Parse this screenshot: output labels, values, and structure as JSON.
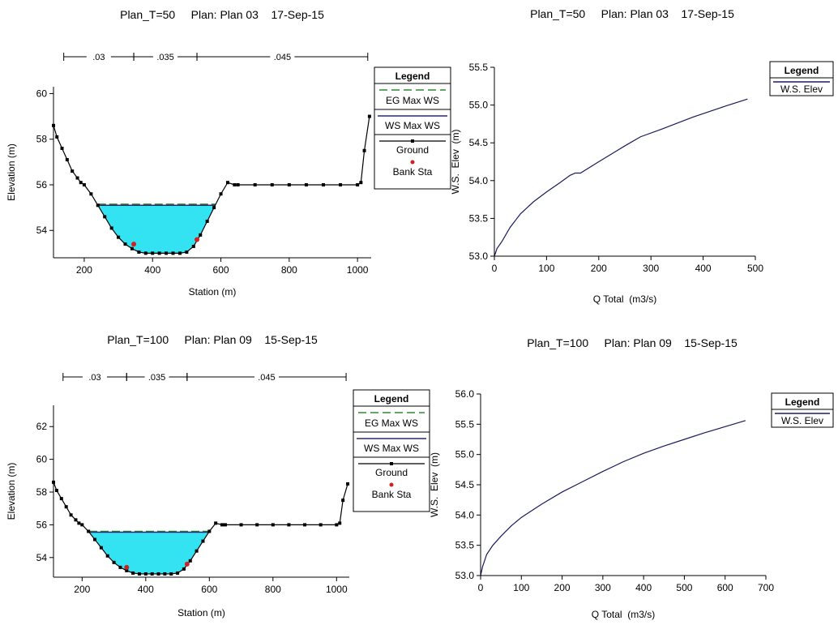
{
  "chart_data": [
    {
      "type": "line",
      "title": "Plan_T=50     Plan: Plan 03    17-Sep-15",
      "xlabel": "Station (m)",
      "ylabel": "Elevation (m)",
      "xlim": [
        110,
        1040
      ],
      "ylim": [
        52.8,
        60.3
      ],
      "x_ticks": [
        200,
        400,
        600,
        800,
        1000
      ],
      "y_ticks": [
        54,
        56,
        58,
        60
      ],
      "manning_n": [
        {
          "label": ".03",
          "from": 140,
          "to": 345
        },
        {
          "label": ".035",
          "from": 345,
          "to": 530
        },
        {
          "label": ".045",
          "from": 530,
          "to": 1030
        }
      ],
      "ground": {
        "x": [
          110,
          120,
          135,
          150,
          165,
          180,
          190,
          200,
          220,
          240,
          260,
          280,
          300,
          320,
          340,
          360,
          380,
          400,
          420,
          440,
          460,
          480,
          500,
          520,
          540,
          560,
          580,
          600,
          620,
          640,
          650,
          700,
          750,
          800,
          850,
          900,
          950,
          1000,
          1010,
          1020,
          1035
        ],
        "y": [
          58.6,
          58.1,
          57.6,
          57.1,
          56.6,
          56.3,
          56.1,
          56.0,
          55.6,
          55.1,
          54.6,
          54.1,
          53.7,
          53.4,
          53.2,
          53.05,
          53.0,
          53.0,
          53.0,
          53.0,
          53.0,
          53.0,
          53.05,
          53.3,
          53.8,
          54.4,
          55.0,
          55.6,
          56.1,
          56.0,
          56.0,
          56.0,
          56.0,
          56.0,
          56.0,
          56.0,
          56.0,
          56.0,
          56.1,
          57.5,
          59.0
        ]
      },
      "bank_stations": [
        {
          "x": 345,
          "y": 53.4
        },
        {
          "x": 530,
          "y": 53.6
        }
      ],
      "ws_max_ws": 55.1,
      "eg_max_ws": 55.15,
      "legend": {
        "title": "Legend",
        "items": [
          "EG Max WS",
          "WS Max WS",
          "Ground",
          "Bank Sta"
        ]
      },
      "colors": {
        "water": "#33e3f2",
        "eg": "#2e8b2e",
        "ws": "#2a2a6e",
        "ground": "#000000",
        "bank": "#cc2222"
      }
    },
    {
      "type": "line",
      "title": "Plan_T=50     Plan: Plan 03    17-Sep-15",
      "xlabel": "Q Total  (m3/s)",
      "ylabel": "W.S.  Elev  (m)",
      "xlim": [
        0,
        500
      ],
      "ylim": [
        53.0,
        55.5
      ],
      "x_ticks": [
        0,
        100,
        200,
        300,
        400,
        500
      ],
      "y_ticks": [
        "53.0",
        "53.5",
        "54.0",
        "54.5",
        "55.0",
        "55.5"
      ],
      "series": [
        {
          "name": "W.S. Elev",
          "x": [
            0,
            5,
            15,
            30,
            50,
            75,
            100,
            125,
            145,
            155,
            165,
            200,
            250,
            280,
            320,
            380,
            440,
            485
          ],
          "y": [
            53.0,
            53.1,
            53.2,
            53.38,
            53.56,
            53.72,
            53.85,
            53.97,
            54.07,
            54.1,
            54.1,
            54.25,
            54.46,
            54.58,
            54.68,
            54.84,
            54.98,
            55.08
          ]
        }
      ],
      "legend": {
        "title": "Legend",
        "items": [
          "W.S. Elev"
        ]
      },
      "colors": {
        "line": "#1a1a5e"
      }
    },
    {
      "type": "line",
      "title": "Plan_T=100     Plan: Plan 09    15-Sep-15",
      "xlabel": "Station (m)",
      "ylabel": "Elevation (m)",
      "xlim": [
        110,
        1040
      ],
      "ylim": [
        52.8,
        63.3
      ],
      "x_ticks": [
        200,
        400,
        600,
        800,
        1000
      ],
      "y_ticks": [
        54,
        56,
        58,
        60,
        62
      ],
      "manning_n": [
        {
          "label": ".03",
          "from": 140,
          "to": 340
        },
        {
          "label": ".035",
          "from": 340,
          "to": 530
        },
        {
          "label": ".045",
          "from": 530,
          "to": 1030
        }
      ],
      "ground": {
        "x": [
          110,
          120,
          135,
          150,
          165,
          180,
          190,
          200,
          220,
          240,
          260,
          280,
          300,
          320,
          340,
          360,
          380,
          400,
          420,
          440,
          460,
          480,
          500,
          520,
          540,
          560,
          580,
          600,
          620,
          640,
          650,
          700,
          750,
          800,
          850,
          900,
          950,
          1000,
          1010,
          1020,
          1035
        ],
        "y": [
          58.6,
          58.1,
          57.6,
          57.1,
          56.6,
          56.3,
          56.1,
          56.0,
          55.6,
          55.1,
          54.6,
          54.1,
          53.7,
          53.4,
          53.2,
          53.05,
          53.0,
          53.0,
          53.0,
          53.0,
          53.0,
          53.0,
          53.05,
          53.3,
          53.8,
          54.4,
          55.0,
          55.6,
          56.1,
          56.0,
          56.0,
          56.0,
          56.0,
          56.0,
          56.0,
          56.0,
          56.0,
          56.0,
          56.1,
          57.5,
          58.5
        ]
      },
      "bank_stations": [
        {
          "x": 340,
          "y": 53.4
        },
        {
          "x": 530,
          "y": 53.6
        }
      ],
      "ws_max_ws": 55.55,
      "eg_max_ws": 55.6,
      "legend": {
        "title": "Legend",
        "items": [
          "EG Max WS",
          "WS Max WS",
          "Ground",
          "Bank Sta"
        ]
      },
      "colors": {
        "water": "#33e3f2",
        "eg": "#2e8b2e",
        "ws": "#2a2a6e",
        "ground": "#000000",
        "bank": "#cc2222"
      }
    },
    {
      "type": "line",
      "title": "Plan_T=100     Plan: Plan 09    15-Sep-15",
      "xlabel": "Q Total  (m3/s)",
      "ylabel": "W.S.  Elev  (m)",
      "xlim": [
        0,
        700
      ],
      "ylim": [
        53.0,
        56.0
      ],
      "x_ticks": [
        0,
        100,
        200,
        300,
        400,
        500,
        600,
        700
      ],
      "y_ticks": [
        "53.0",
        "53.5",
        "54.0",
        "54.5",
        "55.0",
        "55.5",
        "56.0"
      ],
      "series": [
        {
          "name": "W.S. Elev",
          "x": [
            0,
            5,
            15,
            30,
            50,
            75,
            100,
            150,
            200,
            250,
            300,
            350,
            400,
            450,
            500,
            550,
            600,
            650
          ],
          "y": [
            53.0,
            53.15,
            53.35,
            53.5,
            53.65,
            53.82,
            53.96,
            54.18,
            54.38,
            54.55,
            54.72,
            54.88,
            55.02,
            55.14,
            55.25,
            55.36,
            55.46,
            55.56
          ]
        }
      ],
      "legend": {
        "title": "Legend",
        "items": [
          "W.S. Elev"
        ]
      },
      "colors": {
        "line": "#1a1a5e"
      }
    }
  ]
}
